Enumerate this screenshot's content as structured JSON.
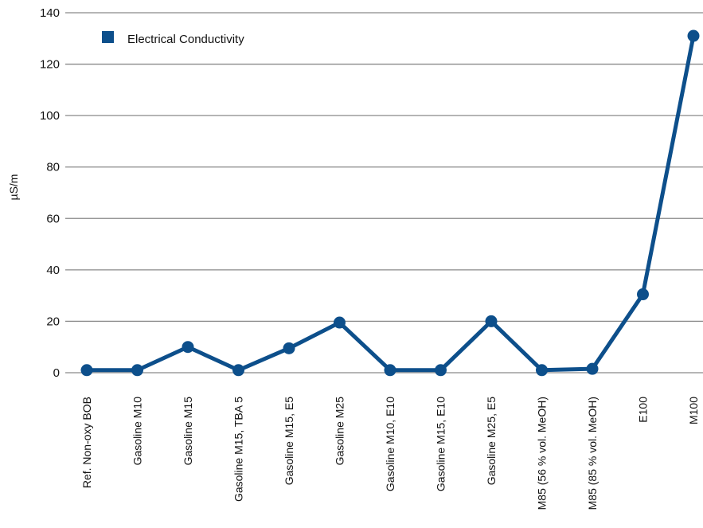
{
  "chart_data": {
    "type": "line",
    "title": "",
    "xlabel": "",
    "ylabel": "µS/m",
    "ylim": [
      0,
      140
    ],
    "yticks": [
      0,
      20,
      40,
      60,
      80,
      100,
      120,
      140
    ],
    "grid": true,
    "legend_position": "top-left",
    "color": "#0d4f8b",
    "categories": [
      "Ref. Non-oxy BOB",
      "Gasoline M10",
      "Gasoline M15",
      "Gasoline M15, TBA 5",
      "Gasoline M15, E5",
      "Gasoline M25",
      "Gasoline M10, E10",
      "Gasoline M15, E10",
      "Gasoline M25, E5",
      "M85 (56 % vol. MeOH)",
      "M85 (85 % vol. MeOH)",
      "E100",
      "M100"
    ],
    "series": [
      {
        "name": "Electrical Conductivity",
        "values": [
          1,
          1,
          10,
          1,
          9.5,
          19.5,
          1,
          1,
          20,
          1,
          1.5,
          30.5,
          131
        ]
      }
    ]
  }
}
